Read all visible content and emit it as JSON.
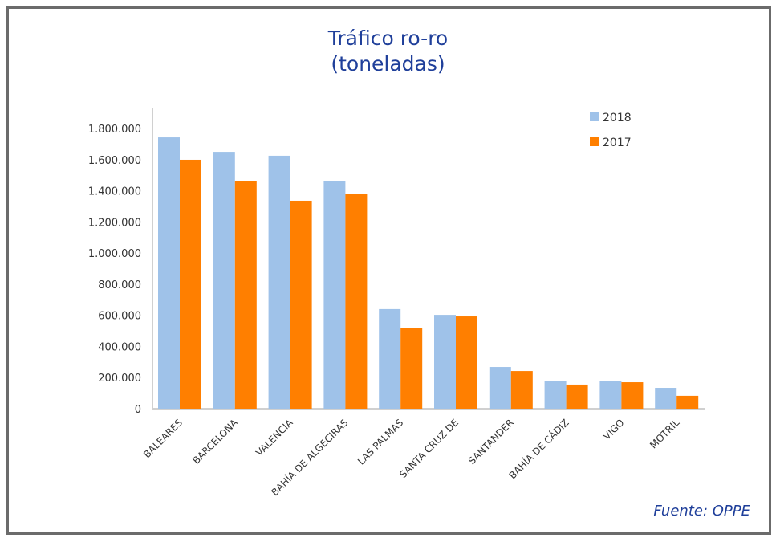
{
  "chart_data": {
    "type": "bar",
    "title": "Tráfico ro-ro",
    "subtitle": "(toneladas)",
    "source": "Fuente: OPPE",
    "categories": [
      "BALEARES",
      "BARCELONA",
      "VALENCIA",
      "BAHÍA DE ALGECIRAS",
      "LAS PALMAS",
      "SANTA CRUZ DE",
      "SANTANDER",
      "BAHÍA DE CÁDIZ",
      "VIGO",
      "MOTRIL"
    ],
    "series": [
      {
        "name": "2018",
        "color": "#9fc2e9",
        "values": [
          1743000,
          1650000,
          1625000,
          1460000,
          640000,
          603000,
          268000,
          180000,
          180000,
          134000
        ]
      },
      {
        "name": "2017",
        "color": "#ff7f00",
        "values": [
          1599000,
          1460000,
          1336000,
          1382000,
          516000,
          593000,
          242000,
          155000,
          170000,
          83000
        ]
      }
    ],
    "ylim": [
      0,
      1800000
    ],
    "yticks": [
      "0",
      "200.000",
      "400.000",
      "600.000",
      "800.000",
      "1.000.000",
      "1.200.000",
      "1.400.000",
      "1.600.000",
      "1.800.000"
    ],
    "legend": "top-right",
    "grid": false
  }
}
